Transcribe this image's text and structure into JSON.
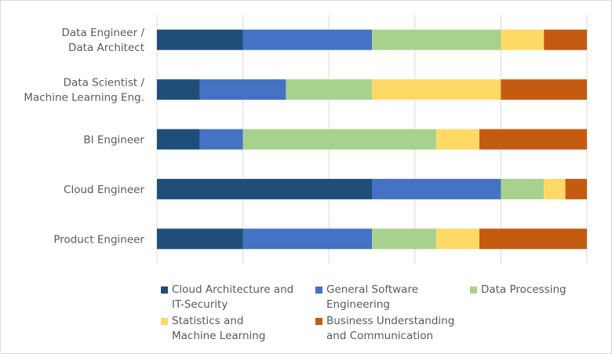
{
  "chart_data": {
    "type": "bar",
    "orientation": "horizontal",
    "stacked": "percent",
    "title": "",
    "xlabel": "",
    "ylabel": "",
    "xlim": [
      0,
      100
    ],
    "grid": true,
    "legend_position": "bottom",
    "categories": [
      [
        "Data Engineer /",
        "Data Architect"
      ],
      [
        "Data Scientist /",
        "Machine Learning Eng."
      ],
      [
        "BI Engineer"
      ],
      [
        "Cloud Engineer"
      ],
      [
        "Product Engineer"
      ]
    ],
    "series": [
      {
        "name": [
          "Cloud Architecture and",
          "IT-Security"
        ],
        "color": "#1F4E79",
        "values": [
          20,
          10,
          10,
          50,
          20
        ]
      },
      {
        "name": [
          "General Software",
          "Engineering"
        ],
        "color": "#4472C4",
        "values": [
          30,
          20,
          10,
          30,
          30
        ]
      },
      {
        "name": [
          "Data Processing"
        ],
        "color": "#A9D18E",
        "values": [
          30,
          20,
          45,
          10,
          15
        ]
      },
      {
        "name": [
          "Statistics and",
          "Machine Learning"
        ],
        "color": "#FFD966",
        "values": [
          10,
          30,
          10,
          5,
          10
        ]
      },
      {
        "name": [
          "Business Understanding",
          "and Communication"
        ],
        "color": "#C55A11",
        "values": [
          10,
          20,
          25,
          5,
          25
        ]
      }
    ]
  }
}
